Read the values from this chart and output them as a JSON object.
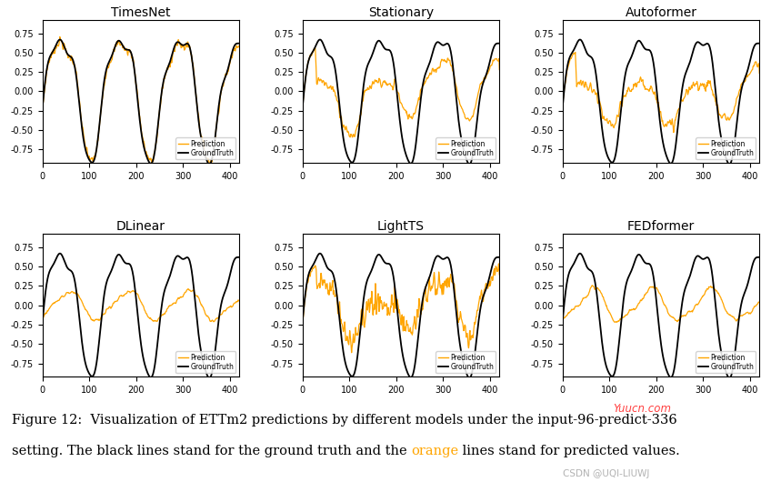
{
  "titles": [
    "TimesNet",
    "Stationary",
    "Autoformer",
    "DLinear",
    "LightTS",
    "FEDformer"
  ],
  "ground_truth_color": "#000000",
  "prediction_color": "#FFA500",
  "x_ticks": [
    0,
    100,
    200,
    300,
    400
  ],
  "y_ticks": [
    -0.75,
    -0.5,
    -0.25,
    0.0,
    0.25,
    0.5,
    0.75
  ],
  "y_lim": [
    -0.92,
    0.92
  ],
  "x_lim": [
    0,
    420
  ],
  "legend_fontsize": 5.5,
  "title_fontsize": 10,
  "tick_fontsize": 7,
  "caption_fontsize": 10.5,
  "background_color": "#ffffff",
  "watermark1": "Yuucn.com",
  "watermark2": "CSDN @UQI-LIUWJ",
  "caption_line1": "Figure 12:  Visualization of ETTm2 predictions by different models under the input-96-predict-336",
  "caption_line2_pre": "setting. The black lines stand for the ground truth and the ",
  "caption_orange": "orange",
  "caption_line2_post": " lines stand for predicted values."
}
